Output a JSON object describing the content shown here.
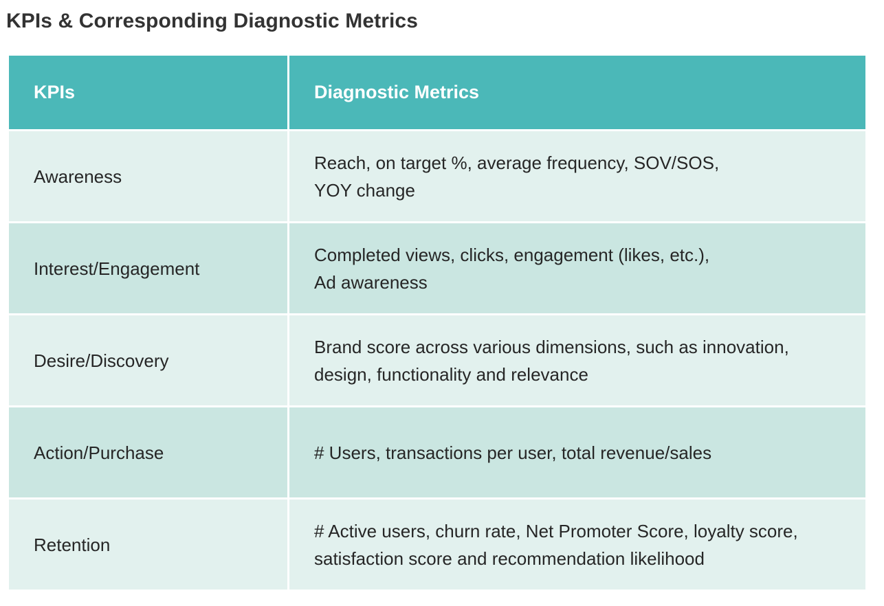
{
  "title": "KPIs & Corresponding Diagnostic Metrics",
  "table": {
    "headers": [
      "KPIs",
      "Diagnostic Metrics"
    ],
    "rows": [
      {
        "kpi": "Awareness",
        "metrics": [
          "Reach, on target %, average frequency, SOV/SOS,",
          "YOY change"
        ]
      },
      {
        "kpi": "Interest/Engagement",
        "metrics": [
          "Completed views, clicks, engagement (likes, etc.),",
          "Ad awareness"
        ]
      },
      {
        "kpi": "Desire/Discovery",
        "metrics": [
          "Brand score across various dimensions, such as innovation,",
          "design, functionality and relevance"
        ]
      },
      {
        "kpi": "Action/Purchase",
        "metrics": [
          "# Users, transactions per user, total revenue/sales"
        ]
      },
      {
        "kpi": "Retention",
        "metrics": [
          "# Active users, churn rate, Net Promoter Score, loyalty score,",
          "satisfaction score and recommendation likelihood"
        ]
      }
    ]
  },
  "colors": {
    "header_bg": "#4bb8b8",
    "row_light": "#e2f1ee",
    "row_dark": "#cae6e1",
    "title_text": "#333333"
  }
}
